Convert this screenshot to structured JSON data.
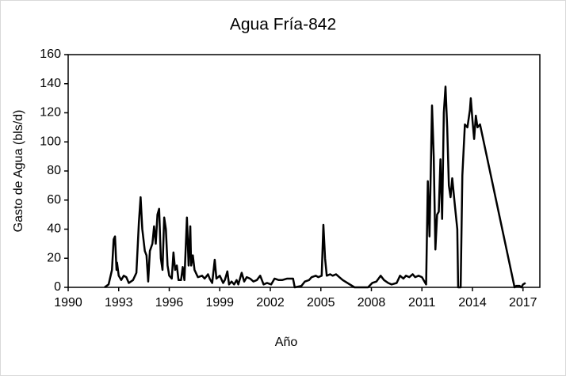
{
  "chart_data": {
    "type": "line",
    "title": "Agua Fría-842",
    "xlabel": "Año",
    "ylabel": "Gasto de Agua  (bls/d)",
    "xlim": [
      1990,
      2018
    ],
    "xticks": [
      1990,
      1993,
      1996,
      1999,
      2002,
      2005,
      2008,
      2011,
      2014,
      2017
    ],
    "ylim": [
      0,
      160
    ],
    "yticks": [
      0,
      20,
      40,
      60,
      80,
      100,
      120,
      140,
      160
    ],
    "series": [
      {
        "color": "#000000",
        "x": [
          1992.16,
          1992.4,
          1992.6,
          1992.7,
          1992.78,
          1992.87,
          1992.9,
          1993.0,
          1993.15,
          1993.3,
          1993.45,
          1993.6,
          1993.85,
          1994.05,
          1994.2,
          1994.3,
          1994.4,
          1994.55,
          1994.65,
          1994.75,
          1994.85,
          1995.0,
          1995.1,
          1995.2,
          1995.3,
          1995.4,
          1995.5,
          1995.6,
          1995.7,
          1995.8,
          1995.9,
          1996.0,
          1996.15,
          1996.25,
          1996.35,
          1996.45,
          1996.55,
          1996.7,
          1996.8,
          1996.9,
          1997.05,
          1997.15,
          1997.25,
          1997.3,
          1997.4,
          1997.5,
          1997.7,
          1997.95,
          1998.1,
          1998.3,
          1998.4,
          1998.55,
          1998.7,
          1998.8,
          1999.0,
          1999.2,
          1999.3,
          1999.45,
          1999.55,
          1999.7,
          1999.85,
          2000.0,
          2000.1,
          2000.3,
          2000.45,
          2000.6,
          2000.8,
          2001.0,
          2001.2,
          2001.4,
          2001.6,
          2001.8,
          2002.05,
          2002.25,
          2002.5,
          2002.7,
          2003.0,
          2003.2,
          2003.35,
          2003.45,
          2003.85,
          2004.05,
          2004.3,
          2004.45,
          2004.7,
          2004.85,
          2005.05,
          2005.15,
          2005.25,
          2005.35,
          2005.55,
          2005.7,
          2005.9,
          2006.1,
          2006.3,
          2007.0,
          2007.8,
          2008.05,
          2008.3,
          2008.55,
          2008.75,
          2009.0,
          2009.2,
          2009.5,
          2009.7,
          2009.9,
          2010.05,
          2010.25,
          2010.45,
          2010.6,
          2010.8,
          2011.0,
          2011.2,
          2011.25,
          2011.35,
          2011.45,
          2011.6,
          2011.7,
          2011.8,
          2011.9,
          2012.0,
          2012.1,
          2012.2,
          2012.3,
          2012.4,
          2012.5,
          2012.6,
          2012.7,
          2012.8,
          2012.95,
          2013.1,
          2013.15,
          2013.3,
          2013.4,
          2013.55,
          2013.7,
          2013.85,
          2013.9,
          2014.0,
          2014.1,
          2014.2,
          2014.3,
          2014.45,
          2016.5,
          2016.6,
          2016.8,
          2016.9,
          2017.0,
          2017.15
        ],
        "values": [
          0,
          2,
          12,
          33,
          35,
          12,
          17,
          8,
          5,
          8,
          7,
          3,
          5,
          10,
          45,
          62,
          40,
          25,
          22,
          4,
          25,
          30,
          42,
          30,
          50,
          54,
          20,
          12,
          48,
          40,
          15,
          8,
          6,
          24,
          12,
          15,
          5,
          5,
          14,
          5,
          48,
          15,
          42,
          15,
          22,
          12,
          7,
          8,
          6,
          9,
          6,
          3,
          19,
          6,
          8,
          3,
          5,
          11,
          2,
          4,
          2,
          5,
          2,
          10,
          4,
          7,
          6,
          4,
          5,
          8,
          2,
          3,
          2,
          6,
          5,
          5,
          6,
          6,
          6,
          0,
          1,
          4,
          5,
          7,
          8,
          7,
          8,
          43,
          20,
          8,
          9,
          8,
          9,
          7,
          5,
          0,
          0,
          3,
          4,
          8,
          5,
          3,
          2,
          3,
          8,
          6,
          8,
          7,
          9,
          7,
          8,
          7,
          3,
          2,
          73,
          35,
          125,
          90,
          26,
          50,
          52,
          88,
          47,
          120,
          138,
          110,
          70,
          62,
          75,
          57,
          40,
          0,
          0,
          77,
          112,
          110,
          122,
          130,
          115,
          102,
          118,
          110,
          112,
          0,
          1,
          1,
          0,
          2,
          3
        ]
      }
    ]
  }
}
